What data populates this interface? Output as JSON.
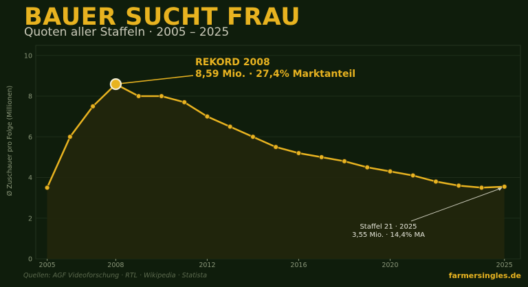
{
  "header": {
    "title": "BAUER SUCHT FRAU",
    "subtitle": "Quoten aller Staffeln · 2005 – 2025"
  },
  "footer": {
    "source": "Quellen: AGF Videoforschung · RTL · Wikipedia · Statista",
    "brand": "farmersingles.de"
  },
  "colors": {
    "background": "#0f1d0c",
    "line": "#e8b320",
    "fill": "#22260d",
    "grid": "#1f2e1a"
  },
  "chart_data": {
    "type": "area",
    "title": "BAUER SUCHT FRAU",
    "subtitle": "Quoten aller Staffeln · 2005 – 2025",
    "xlabel": "",
    "ylabel": "Ø Zuschauer pro Folge (Millionen)",
    "xlim": [
      2004.5,
      2025.7
    ],
    "ylim": [
      0,
      10.5
    ],
    "x_ticks": [
      2005,
      2008,
      2012,
      2016,
      2020,
      2025
    ],
    "y_ticks": [
      0,
      2,
      4,
      6,
      8,
      10
    ],
    "grid": true,
    "series": [
      {
        "x": [
          2005,
          2006,
          2007,
          2008,
          2009,
          2010,
          2011,
          2012,
          2013,
          2014,
          2015,
          2016,
          2017,
          2018,
          2019,
          2020,
          2021,
          2022,
          2023,
          2024,
          2025
        ],
        "values": [
          3.5,
          6.0,
          7.5,
          8.59,
          8.0,
          8.0,
          7.7,
          7.0,
          6.5,
          6.0,
          5.5,
          5.2,
          5.0,
          4.8,
          4.5,
          4.3,
          4.1,
          3.8,
          3.6,
          3.5,
          3.55
        ]
      }
    ],
    "annotations": [
      {
        "x": 2008,
        "y": 8.59,
        "line1": "REKORD 2008",
        "line2": "8,59 Mio. · 27,4% Marktanteil"
      },
      {
        "x": 2025,
        "y": 3.55,
        "line1": "Staffel 21 · 2025",
        "line2": "3,55 Mio. · 14,4% MA"
      }
    ]
  }
}
